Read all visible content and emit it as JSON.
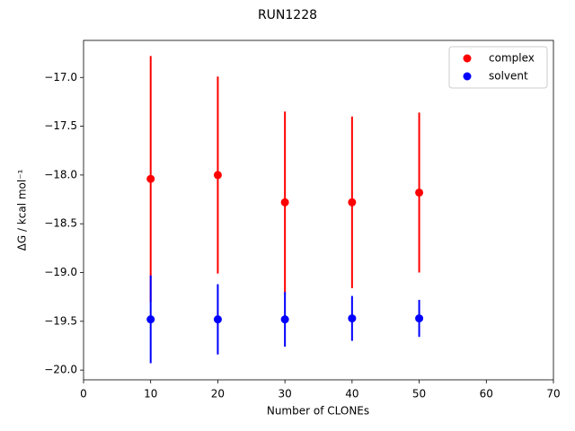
{
  "chart_data": {
    "type": "errorbar-scatter",
    "title": "RUN1228",
    "xlabel": "Number of CLONEs",
    "ylabel": "ΔG / kcal mol⁻¹",
    "x": [
      10,
      20,
      30,
      40,
      50
    ],
    "series": [
      {
        "name": "complex",
        "color": "#ff0000",
        "values": [
          -18.04,
          -18.0,
          -18.28,
          -18.28,
          -18.18
        ],
        "errors": [
          1.26,
          1.01,
          0.93,
          0.88,
          0.82
        ]
      },
      {
        "name": "solvent",
        "color": "#0000ff",
        "values": [
          -19.48,
          -19.48,
          -19.48,
          -19.47,
          -19.47
        ],
        "errors": [
          0.45,
          0.36,
          0.28,
          0.23,
          0.19
        ]
      }
    ],
    "xlim": [
      0,
      70
    ],
    "xticks": [
      0,
      10,
      20,
      30,
      40,
      50,
      60,
      70
    ],
    "ylim": [
      -20.1,
      -16.62
    ],
    "yticks": [
      {
        "value": -20.0,
        "label": "−20.0"
      },
      {
        "value": -19.5,
        "label": "−19.5"
      },
      {
        "value": -19.0,
        "label": "−19.0"
      },
      {
        "value": -18.5,
        "label": "−18.5"
      },
      {
        "value": -18.0,
        "label": "−18.0"
      },
      {
        "value": -17.5,
        "label": "−17.5"
      },
      {
        "value": -17.0,
        "label": "−17.0"
      }
    ],
    "legend": "upper right",
    "grid": false
  }
}
